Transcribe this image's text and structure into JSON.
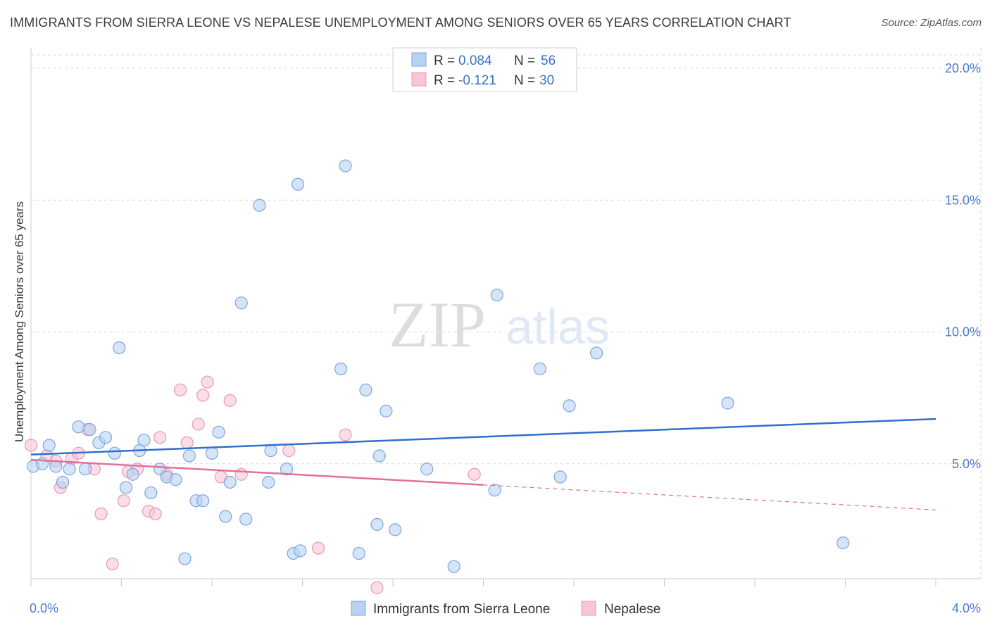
{
  "title": "IMMIGRANTS FROM SIERRA LEONE VS NEPALESE UNEMPLOYMENT AMONG SENIORS OVER 65 YEARS CORRELATION CHART",
  "source": "Source: ZipAtlas.com",
  "watermark": {
    "zip": "ZIP",
    "atlas": "atlas"
  },
  "colors": {
    "blue_fill": "#b9d2f2",
    "blue_stroke": "#7aa7e0",
    "blue_line": "#2f6fcf",
    "pink_fill": "#f7c6d6",
    "pink_stroke": "#e89ab4",
    "pink_line": "#e0719a",
    "grid": "#d9d9d9",
    "axis_label": "#4a7cc9"
  },
  "legend": {
    "rows": [
      {
        "r_label": "R =",
        "r_value": "0.084",
        "n_label": "N =",
        "n_value": "56"
      },
      {
        "r_label": "R =",
        "r_value": "-0.121",
        "n_label": "N =",
        "n_value": "30"
      }
    ]
  },
  "chart_data": {
    "type": "scatter",
    "title": "IMMIGRANTS FROM SIERRA LEONE VS NEPALESE UNEMPLOYMENT AMONG SENIORS OVER 65 YEARS CORRELATION CHART",
    "xlabel": "",
    "ylabel": "Unemployment Among Seniors over 65 years",
    "xlim": [
      0,
      4
    ],
    "ylim": [
      0,
      20
    ],
    "x_tick_labels": [
      "0.0%",
      "4.0%"
    ],
    "y_ticks": [
      5,
      10,
      15,
      20
    ],
    "y_tick_labels": [
      "5.0%",
      "10.0%",
      "15.0%",
      "20.0%"
    ],
    "series": [
      {
        "name": "Immigrants from Sierra Leone",
        "points": [
          [
            0.01,
            4.9
          ],
          [
            0.05,
            5.0
          ],
          [
            0.08,
            5.7
          ],
          [
            0.11,
            4.9
          ],
          [
            0.14,
            4.3
          ],
          [
            0.17,
            4.8
          ],
          [
            0.21,
            6.4
          ],
          [
            0.24,
            4.8
          ],
          [
            0.26,
            6.3
          ],
          [
            0.3,
            5.8
          ],
          [
            0.33,
            6.0
          ],
          [
            0.37,
            5.4
          ],
          [
            0.39,
            9.4
          ],
          [
            0.42,
            4.1
          ],
          [
            0.45,
            4.6
          ],
          [
            0.48,
            5.5
          ],
          [
            0.5,
            5.9
          ],
          [
            0.53,
            3.9
          ],
          [
            0.57,
            4.8
          ],
          [
            0.6,
            4.5
          ],
          [
            0.64,
            4.4
          ],
          [
            0.68,
            1.4
          ],
          [
            0.7,
            5.3
          ],
          [
            0.73,
            3.6
          ],
          [
            0.76,
            3.6
          ],
          [
            0.8,
            5.4
          ],
          [
            0.83,
            6.2
          ],
          [
            0.86,
            3.0
          ],
          [
            0.88,
            4.3
          ],
          [
            0.93,
            11.1
          ],
          [
            0.95,
            2.9
          ],
          [
            1.01,
            14.8
          ],
          [
            1.05,
            4.3
          ],
          [
            1.06,
            5.5
          ],
          [
            1.13,
            4.8
          ],
          [
            1.16,
            1.6
          ],
          [
            1.19,
            1.7
          ],
          [
            1.18,
            15.6
          ],
          [
            1.37,
            8.6
          ],
          [
            1.39,
            16.3
          ],
          [
            1.45,
            1.6
          ],
          [
            1.48,
            7.8
          ],
          [
            1.53,
            2.7
          ],
          [
            1.54,
            5.3
          ],
          [
            1.57,
            7.0
          ],
          [
            1.61,
            2.5
          ],
          [
            1.75,
            4.8
          ],
          [
            1.87,
            1.1
          ],
          [
            2.05,
            4.0
          ],
          [
            2.06,
            11.4
          ],
          [
            2.25,
            8.6
          ],
          [
            2.34,
            4.5
          ],
          [
            2.38,
            7.2
          ],
          [
            2.5,
            9.2
          ],
          [
            3.08,
            7.3
          ],
          [
            3.59,
            2.0
          ]
        ]
      },
      {
        "name": "Nepalese",
        "points": [
          [
            0.0,
            5.7
          ],
          [
            0.07,
            5.3
          ],
          [
            0.11,
            5.1
          ],
          [
            0.13,
            4.1
          ],
          [
            0.18,
            5.2
          ],
          [
            0.21,
            5.4
          ],
          [
            0.25,
            6.3
          ],
          [
            0.28,
            4.8
          ],
          [
            0.31,
            3.1
          ],
          [
            0.36,
            1.2
          ],
          [
            0.41,
            3.6
          ],
          [
            0.43,
            4.7
          ],
          [
            0.47,
            4.8
          ],
          [
            0.52,
            3.2
          ],
          [
            0.55,
            3.1
          ],
          [
            0.57,
            6.0
          ],
          [
            0.6,
            4.6
          ],
          [
            0.66,
            7.8
          ],
          [
            0.69,
            5.8
          ],
          [
            0.74,
            6.5
          ],
          [
            0.76,
            7.6
          ],
          [
            0.78,
            8.1
          ],
          [
            0.84,
            4.5
          ],
          [
            0.88,
            7.4
          ],
          [
            0.93,
            4.6
          ],
          [
            1.14,
            5.5
          ],
          [
            1.27,
            1.8
          ],
          [
            1.39,
            6.1
          ],
          [
            1.53,
            0.3
          ],
          [
            1.96,
            4.6
          ]
        ]
      }
    ],
    "trend_lines": [
      {
        "series": "Immigrants from Sierra Leone",
        "start": [
          0,
          5.35
        ],
        "end": [
          4,
          6.7
        ],
        "style": "solid"
      },
      {
        "series": "Nepalese",
        "solid_start": [
          0,
          5.15
        ],
        "solid_end": [
          2.0,
          4.2
        ],
        "dashed_end": [
          4,
          3.25
        ]
      }
    ]
  }
}
